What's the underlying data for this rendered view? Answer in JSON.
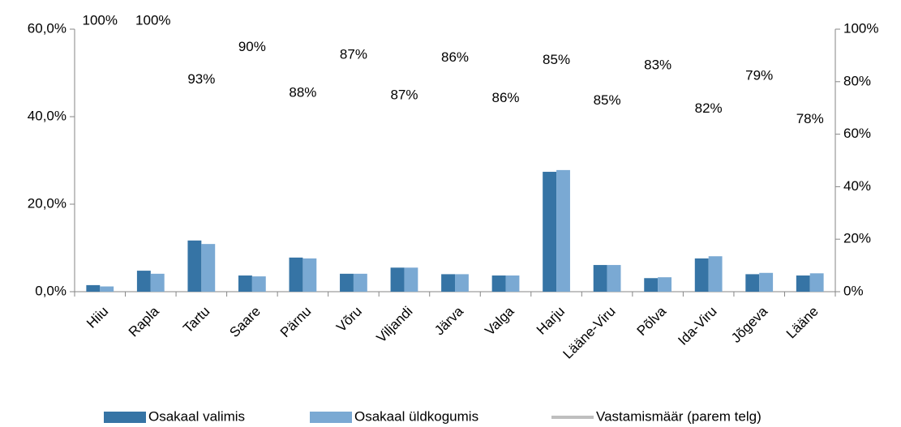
{
  "chart_data": {
    "type": "bar_line",
    "categories": [
      "Hiiu",
      "Rapla",
      "Tartu",
      "Saare",
      "Pärnu",
      "Võru",
      "Viljandi",
      "Järva",
      "Valga",
      "Harju",
      "Lääne-Viru",
      "Põlva",
      "Ida-Viru",
      "Jõgeva",
      "Lääne"
    ],
    "series": [
      {
        "name": "Osakaal valimis",
        "type": "bar",
        "color": "#3674a5",
        "values": [
          1.5,
          4.8,
          11.7,
          3.7,
          7.8,
          4.1,
          5.5,
          4.0,
          3.7,
          27.4,
          6.1,
          3.1,
          7.6,
          4.0,
          3.7
        ]
      },
      {
        "name": "Osakaal üldkogumis",
        "type": "bar",
        "color": "#7aa9d3",
        "values": [
          1.2,
          4.1,
          10.9,
          3.5,
          7.6,
          4.1,
          5.5,
          4.0,
          3.7,
          27.8,
          6.1,
          3.3,
          8.1,
          4.3,
          4.2
        ]
      },
      {
        "name": "Vastamismäär (parem telg)",
        "type": "line",
        "axis": "y2",
        "color": "#bfbfbf",
        "values": [
          100,
          100,
          93,
          90,
          88,
          87,
          87,
          86,
          86,
          85,
          85,
          83,
          82,
          79,
          78
        ],
        "value_labels": [
          "100%",
          "100%",
          "93%",
          "90%",
          "88%",
          "87%",
          "87%",
          "86%",
          "86%",
          "85%",
          "85%",
          "83%",
          "82%",
          "79%",
          "78%"
        ]
      }
    ],
    "ylim": [
      0,
      60
    ],
    "yticks": [
      {
        "value": 0,
        "label": "0,0%"
      },
      {
        "value": 20,
        "label": "20,0%"
      },
      {
        "value": 40,
        "label": "40,0%"
      },
      {
        "value": 60,
        "label": "60,0%"
      }
    ],
    "y2lim": [
      0,
      100
    ],
    "y2ticks": [
      {
        "value": 0,
        "label": "0%"
      },
      {
        "value": 20,
        "label": "20%"
      },
      {
        "value": 40,
        "label": "40%"
      },
      {
        "value": 60,
        "label": "60%"
      },
      {
        "value": 80,
        "label": "80%"
      },
      {
        "value": 100,
        "label": "100%"
      }
    ],
    "legend": "bottom"
  }
}
